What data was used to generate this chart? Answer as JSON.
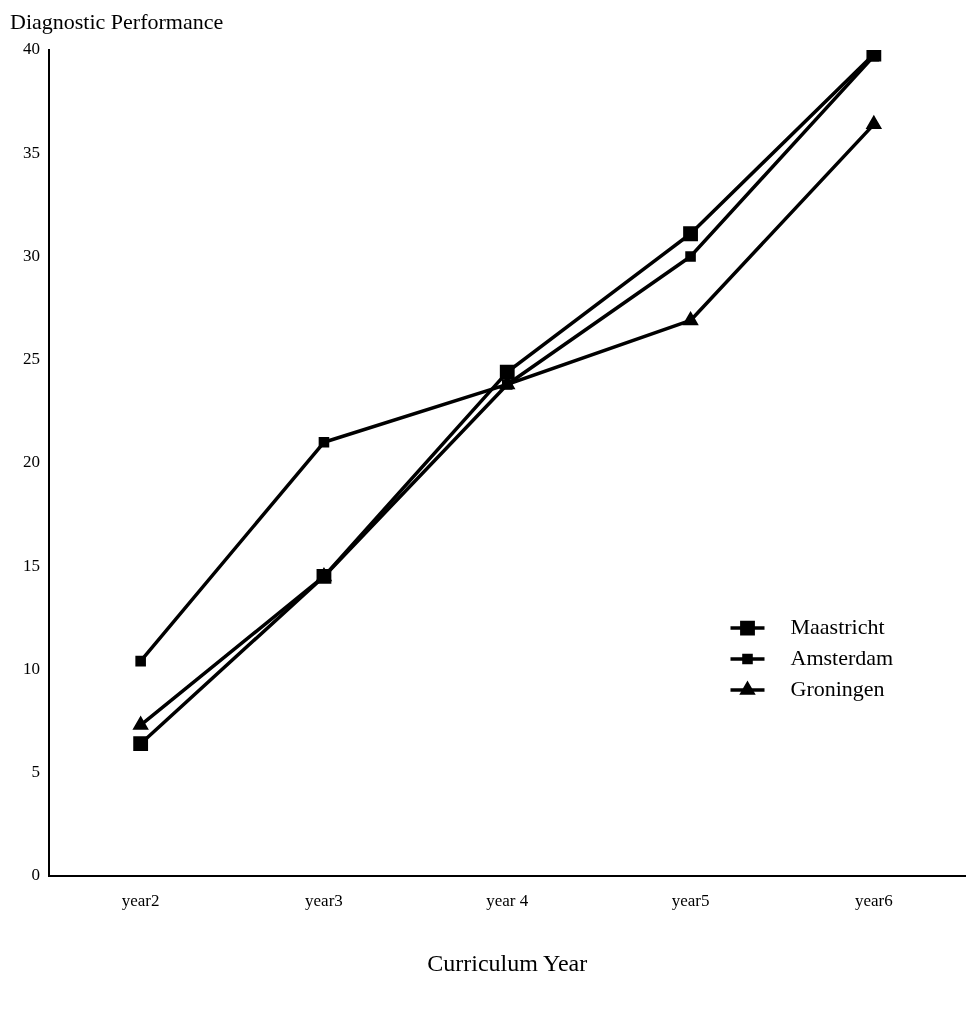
{
  "chart_data": {
    "type": "line",
    "ylabel": "Diagnostic Performance",
    "xlabel": "Curriculum Year",
    "categories": [
      "year2",
      "year3",
      "year 4",
      "year5",
      "year6"
    ],
    "series": [
      {
        "name": "Maastricht",
        "color": "#000000",
        "marker": "square",
        "values": [
          6.4,
          14.5,
          24.4,
          31.1,
          39.8
        ]
      },
      {
        "name": "Amsterdam",
        "color": "#000000",
        "marker": "square",
        "values": [
          10.4,
          21.0,
          23.8,
          30.0,
          39.7
        ]
      },
      {
        "name": "Groningen",
        "color": "#000000",
        "marker": "triangle",
        "values": [
          7.3,
          14.5,
          23.8,
          26.9,
          36.4
        ]
      }
    ],
    "ylim": [
      0,
      40
    ],
    "yticks": [
      0,
      5,
      10,
      15,
      20,
      25,
      30,
      35,
      40
    ],
    "grid": false,
    "legend": "right",
    "line_style": "solid"
  }
}
